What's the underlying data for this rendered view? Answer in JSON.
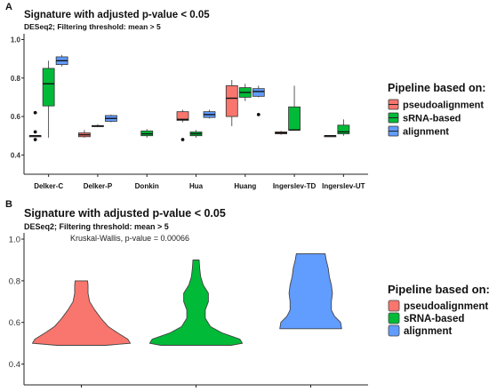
{
  "chart_data": [
    {
      "panel": "A",
      "type": "box",
      "title": "Signature with adjusted p-value < 0.05",
      "subtitle": "DESeq2; Filtering threshold: mean > 5",
      "ylim": [
        0.3,
        1.03
      ],
      "yticks": [
        "0.4",
        "0.6",
        "0.8",
        "1.0"
      ],
      "categories": [
        "Delker-C",
        "Delker-P",
        "Donkin",
        "Hua",
        "Huang",
        "Ingerslev-TD",
        "Ingerslev-UT"
      ],
      "legend": {
        "title": "Pipeline based on:",
        "position": "right",
        "items": [
          "pseudoalignment",
          "sRNA-based",
          "alignment"
        ]
      },
      "series": [
        {
          "name": "pseudoalignment",
          "color": "#F8766D",
          "boxes": [
            {
              "category": "Delker-C",
              "min": 0.5,
              "q1": 0.5,
              "median": 0.5,
              "q3": 0.5,
              "max": 0.5,
              "outliers": [
                0.62,
                0.52,
                0.48
              ]
            },
            {
              "category": "Delker-P",
              "min": 0.49,
              "q1": 0.495,
              "median": 0.505,
              "q3": 0.515,
              "max": 0.53,
              "outliers": []
            },
            {
              "category": "Hua",
              "min": 0.57,
              "q1": 0.58,
              "median": 0.585,
              "q3": 0.625,
              "max": 0.635,
              "outliers": [
                0.48
              ]
            },
            {
              "category": "Huang",
              "min": 0.55,
              "q1": 0.6,
              "median": 0.695,
              "q3": 0.76,
              "max": 0.79,
              "outliers": []
            },
            {
              "category": "Ingerslev-TD",
              "min": 0.505,
              "q1": 0.51,
              "median": 0.515,
              "q3": 0.52,
              "max": 0.525,
              "outliers": []
            },
            {
              "category": "Ingerslev-UT",
              "min": 0.5,
              "q1": 0.5,
              "median": 0.5,
              "q3": 0.5,
              "max": 0.5,
              "outliers": []
            }
          ]
        },
        {
          "name": "sRNA-based",
          "color": "#00BA38",
          "boxes": [
            {
              "category": "Delker-C",
              "min": 0.49,
              "q1": 0.655,
              "median": 0.77,
              "q3": 0.85,
              "max": 0.89,
              "outliers": []
            },
            {
              "category": "Delker-P",
              "min": 0.545,
              "q1": 0.548,
              "median": 0.55,
              "q3": 0.553,
              "max": 0.56,
              "outliers": []
            },
            {
              "category": "Donkin",
              "min": 0.49,
              "q1": 0.5,
              "median": 0.51,
              "q3": 0.525,
              "max": 0.535,
              "outliers": []
            },
            {
              "category": "Hua",
              "min": 0.49,
              "q1": 0.5,
              "median": 0.51,
              "q3": 0.52,
              "max": 0.53,
              "outliers": []
            },
            {
              "category": "Huang",
              "min": 0.68,
              "q1": 0.7,
              "median": 0.725,
              "q3": 0.75,
              "max": 0.77,
              "outliers": []
            },
            {
              "category": "Ingerslev-TD",
              "min": 0.53,
              "q1": 0.53,
              "median": 0.53,
              "q3": 0.65,
              "max": 0.76,
              "outliers": []
            },
            {
              "category": "Ingerslev-UT",
              "min": 0.5,
              "q1": 0.51,
              "median": 0.52,
              "q3": 0.555,
              "max": 0.585,
              "outliers": []
            }
          ]
        },
        {
          "name": "alignment",
          "color": "#619CFF",
          "boxes": [
            {
              "category": "Delker-C",
              "min": 0.86,
              "q1": 0.87,
              "median": 0.89,
              "q3": 0.91,
              "max": 0.92,
              "outliers": []
            },
            {
              "category": "Delker-P",
              "min": 0.57,
              "q1": 0.575,
              "median": 0.59,
              "q3": 0.605,
              "max": 0.61,
              "outliers": []
            },
            {
              "category": "Hua",
              "min": 0.59,
              "q1": 0.595,
              "median": 0.61,
              "q3": 0.625,
              "max": 0.635,
              "outliers": []
            },
            {
              "category": "Huang",
              "min": 0.7,
              "q1": 0.705,
              "median": 0.73,
              "q3": 0.745,
              "max": 0.76,
              "outliers": [
                0.61
              ]
            }
          ]
        }
      ]
    },
    {
      "panel": "B",
      "type": "violin",
      "title": "Signature with adjusted p-value < 0.05",
      "subtitle": "DESeq2; Filtering threshold: mean > 5",
      "annotation": "Kruskal-Wallis, p-value = 0.00066",
      "ylim": [
        0.3,
        1.03
      ],
      "yticks": [
        "0.4",
        "0.6",
        "0.8",
        "1.0"
      ],
      "legend": {
        "title": "Pipeline based on:",
        "position": "right",
        "items": [
          "pseudoalignment",
          "sRNA-based",
          "alignment"
        ]
      },
      "series": [
        {
          "name": "pseudoalignment",
          "color": "#F8766D",
          "profile": [
            [
              0.49,
              0.47
            ],
            [
              0.5,
              0.95
            ],
            [
              0.52,
              0.9
            ],
            [
              0.55,
              0.7
            ],
            [
              0.58,
              0.52
            ],
            [
              0.62,
              0.38
            ],
            [
              0.66,
              0.26
            ],
            [
              0.7,
              0.16
            ],
            [
              0.74,
              0.13
            ],
            [
              0.78,
              0.13
            ],
            [
              0.8,
              0.12
            ]
          ]
        },
        {
          "name": "sRNA-based",
          "color": "#00BA38",
          "profile": [
            [
              0.49,
              0.68
            ],
            [
              0.5,
              0.9
            ],
            [
              0.52,
              0.85
            ],
            [
              0.55,
              0.5
            ],
            [
              0.58,
              0.28
            ],
            [
              0.62,
              0.18
            ],
            [
              0.66,
              0.18
            ],
            [
              0.7,
              0.24
            ],
            [
              0.74,
              0.24
            ],
            [
              0.78,
              0.14
            ],
            [
              0.82,
              0.09
            ],
            [
              0.86,
              0.07
            ],
            [
              0.9,
              0.06
            ]
          ]
        },
        {
          "name": "alignment",
          "color": "#619CFF",
          "profile": [
            [
              0.57,
              0.6
            ],
            [
              0.6,
              0.58
            ],
            [
              0.63,
              0.46
            ],
            [
              0.66,
              0.4
            ],
            [
              0.7,
              0.4
            ],
            [
              0.74,
              0.42
            ],
            [
              0.78,
              0.4
            ],
            [
              0.82,
              0.36
            ],
            [
              0.86,
              0.34
            ],
            [
              0.9,
              0.3
            ],
            [
              0.93,
              0.28
            ]
          ]
        }
      ]
    }
  ]
}
